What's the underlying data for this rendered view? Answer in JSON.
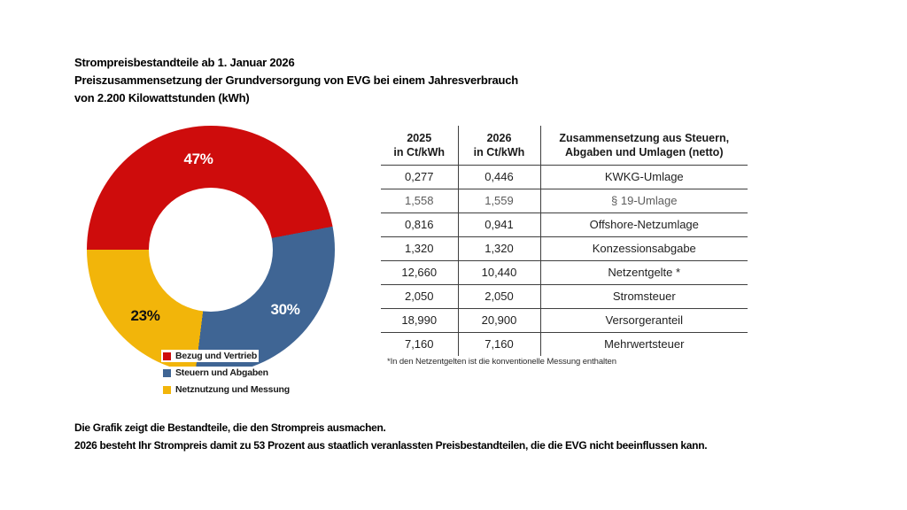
{
  "title": {
    "line1": "Strompreisbestandteile ab 1. Januar 2026",
    "line2": "Preiszusammensetzung der Grundversorgung von EVG bei einem Jahresverbrauch",
    "line3": "von 2.200 Kilowattstunden (kWh)"
  },
  "chart_data": {
    "type": "pie",
    "donut": true,
    "start_angle_deg": 270,
    "direction": "clockwise",
    "legend_position": "center",
    "value_suffix": "%",
    "slices": [
      {
        "label": "Bezug und Vertrieb",
        "value": 47,
        "color": "#ce0c0c",
        "label_color": "#ffffff"
      },
      {
        "label": "Steuern und Abgaben",
        "value": 30,
        "color": "#3f6594",
        "label_color": "#ffffff"
      },
      {
        "label": "Netznutzung und Messung",
        "value": 23,
        "color": "#f2b50a",
        "label_color": "#111111"
      }
    ]
  },
  "table": {
    "columns": [
      {
        "line1": "2025",
        "line2": "in Ct/kWh"
      },
      {
        "line1": "2026",
        "line2": "in Ct/kWh"
      },
      {
        "line1": "Zusammensetzung aus Steuern,",
        "line2": "Abgaben und Umlagen (netto)"
      }
    ],
    "rows": [
      {
        "y2025": "0,277",
        "y2026": "0,446",
        "label": "KWKG-Umlage",
        "muted": false
      },
      {
        "y2025": "1,558",
        "y2026": "1,559",
        "label": "§ 19-Umlage",
        "muted": true
      },
      {
        "y2025": "0,816",
        "y2026": "0,941",
        "label": "Offshore-Netzumlage",
        "muted": false
      },
      {
        "y2025": "1,320",
        "y2026": "1,320",
        "label": "Konzessionsabgabe",
        "muted": false
      },
      {
        "y2025": "12,660",
        "y2026": "10,440",
        "label": "Netzentgelte *",
        "muted": false
      },
      {
        "y2025": "2,050",
        "y2026": "2,050",
        "label": "Stromsteuer",
        "muted": false
      },
      {
        "y2025": "18,990",
        "y2026": "20,900",
        "label": "Versorgeranteil",
        "muted": false
      },
      {
        "y2025": "7,160",
        "y2026": "7,160",
        "label": "Mehrwertsteuer",
        "muted": false
      }
    ],
    "footnote": "*In den Netzentgelten ist die konventionelle Messung enthalten"
  },
  "footer": {
    "line1": "Die Grafik zeigt die Bestandteile, die den Strompreis ausmachen.",
    "line2": "2026 besteht Ihr Strompreis damit zu 53 Prozent aus staatlich veranlassten Preisbestandteilen, die die EVG nicht beeinflussen kann."
  }
}
